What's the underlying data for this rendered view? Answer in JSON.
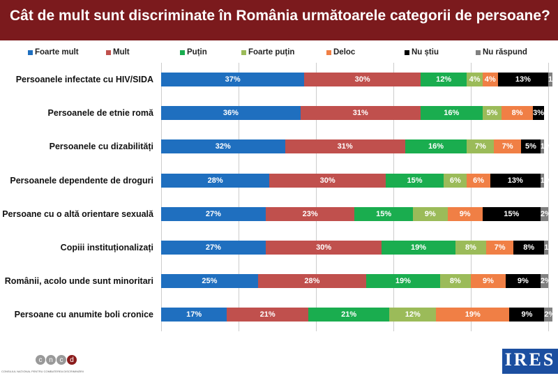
{
  "chart_data": {
    "type": "bar",
    "orientation": "horizontal-stacked-100",
    "title": "Cât de mult sunt discriminate în România următoarele categorii de persoane? (1)",
    "categories": [
      "Persoanele infectate cu HIV/SIDA",
      "Persoanele de etnie romă",
      "Persoanele cu dizabilități",
      "Persoanele dependente de droguri",
      "Persoane cu o altă orientare sexuală",
      "Copiii instituționalizați",
      "Românii, acolo unde sunt minoritari",
      "Persoane cu anumite boli cronice"
    ],
    "series": [
      {
        "name": "Foarte mult",
        "color": "#1f6fbf",
        "values": [
          37,
          36,
          32,
          28,
          27,
          27,
          25,
          17
        ]
      },
      {
        "name": "Mult",
        "color": "#c0504d",
        "values": [
          30,
          31,
          31,
          30,
          23,
          30,
          28,
          21
        ]
      },
      {
        "name": "Puțin",
        "color": "#1aad4f",
        "values": [
          12,
          16,
          16,
          15,
          15,
          19,
          19,
          21
        ]
      },
      {
        "name": "Foarte puțin",
        "color": "#9bbb59",
        "values": [
          4,
          5,
          7,
          6,
          9,
          8,
          8,
          12
        ]
      },
      {
        "name": "Deloc",
        "color": "#f07f45",
        "values": [
          4,
          8,
          7,
          6,
          9,
          7,
          9,
          19
        ]
      },
      {
        "name": "Nu știu",
        "color": "#000000",
        "values": [
          13,
          3,
          5,
          13,
          15,
          8,
          9,
          9
        ]
      },
      {
        "name": "Nu răspund",
        "color": "#808080",
        "values": [
          1,
          0,
          1,
          1,
          2,
          1,
          2,
          2
        ]
      }
    ],
    "unit": "%",
    "xlim": [
      0,
      100
    ],
    "grid": true,
    "legend": "top"
  },
  "logos": {
    "left": "cncd",
    "left_caption": "CONSILIUL NAȚIONAL PENTRU COMBATEREA DISCRIMINĂRII",
    "right": "IRES"
  }
}
